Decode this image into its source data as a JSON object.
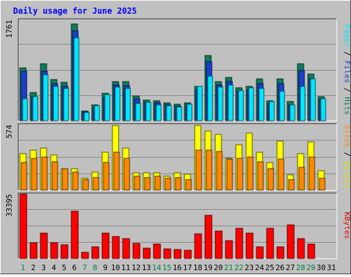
{
  "chart_data": {
    "type": "bar",
    "title": "Daily usage for June 2025",
    "categories": [
      "1",
      "2",
      "3",
      "4",
      "5",
      "6",
      "7",
      "8",
      "9",
      "10",
      "11",
      "12",
      "13",
      "14",
      "15",
      "16",
      "17",
      "18",
      "19",
      "20",
      "21",
      "22",
      "23",
      "24",
      "25",
      "26",
      "27",
      "28",
      "29",
      "30",
      "31"
    ],
    "weekend_days": [
      "1",
      "7",
      "8",
      "14",
      "15",
      "21",
      "22",
      "28",
      "29"
    ],
    "panels": [
      {
        "key": "top",
        "max_label": "1761",
        "ymax": 1761,
        "series": [
          {
            "name": "Hits",
            "values": [
              920,
              490,
              990,
              720,
              670,
              1690,
              170,
              270,
              480,
              680,
              680,
              430,
              360,
              350,
              310,
              290,
              310,
              600,
              1140,
              680,
              750,
              580,
              600,
              730,
              350,
              730,
              330,
              990,
              810,
              420,
              0
            ]
          },
          {
            "name": "Files",
            "values": [
              860,
              420,
              860,
              650,
              600,
              1570,
              150,
              230,
              410,
              620,
              610,
              380,
              320,
              310,
              270,
              250,
              270,
              540,
              1030,
              620,
              680,
              520,
              540,
              650,
              300,
              650,
              280,
              880,
              730,
              370,
              0
            ]
          },
          {
            "name": "Pages",
            "values": [
              380,
              420,
              800,
              600,
              560,
              1450,
              140,
              260,
              460,
              590,
              560,
              300,
              320,
              270,
              260,
              240,
              290,
              600,
              780,
              590,
              620,
              530,
              580,
              560,
              330,
              520,
              280,
              600,
              730,
              380,
              0
            ]
          }
        ],
        "side_label": [
          {
            "text": "Pages",
            "color": "#00e8ff"
          },
          {
            "text": " / ",
            "color": "#000000"
          },
          {
            "text": "Files",
            "color": "#1a3fcf"
          },
          {
            "text": " / ",
            "color": "#000000"
          },
          {
            "text": "Hits",
            "color": "#107b5a"
          }
        ]
      },
      {
        "key": "mid",
        "max_label": "574",
        "ymax": 574,
        "series": [
          {
            "name": "Visits",
            "values": [
              320,
              350,
              370,
              310,
              190,
              190,
              100,
              160,
              330,
              570,
              370,
              150,
              150,
              150,
              120,
              150,
              140,
              570,
              520,
              490,
              280,
              400,
              500,
              330,
              240,
              430,
              130,
              320,
              420,
              170,
              0
            ]
          },
          {
            "name": "Sites",
            "values": [
              240,
              280,
              290,
              250,
              190,
              160,
              90,
              110,
              240,
              330,
              280,
              120,
              110,
              120,
              100,
              110,
              90,
              350,
              350,
              340,
              270,
              280,
              290,
              250,
              190,
              270,
              90,
              200,
              290,
              100,
              0
            ]
          }
        ],
        "side_label": [
          {
            "text": "Sites",
            "color": "#ff8800"
          },
          {
            "text": " / ",
            "color": "#000000"
          },
          {
            "text": "Visits",
            "color": "#e0e000"
          }
        ]
      },
      {
        "key": "bottom",
        "max_label": "33395",
        "ymax": 33395,
        "series": [
          {
            "name": "KBytes",
            "values": [
              33395,
              8200,
              13300,
              8200,
              7100,
              24600,
              3100,
              6100,
              13000,
              11200,
              10400,
              7900,
              5200,
              7500,
              5000,
              4600,
              4400,
              12700,
              22400,
              14300,
              9300,
              15500,
              13100,
              5900,
              15500,
              6000,
              17300,
              10300,
              7500,
              0,
              0
            ]
          }
        ],
        "side_label": [
          {
            "text": "KBytes",
            "color": "#e00000"
          }
        ]
      }
    ],
    "colors": {
      "background": "#c0c0c0",
      "title": "#0000ff",
      "day_normal": "#000000",
      "day_weekend": "#008040",
      "Hits": "#107b5a",
      "Files": "#1a3fcf",
      "Pages": "#00e8ff",
      "Visits": "#ffff00",
      "Sites": "#ff8800",
      "KBytes": "#ff0000"
    }
  }
}
